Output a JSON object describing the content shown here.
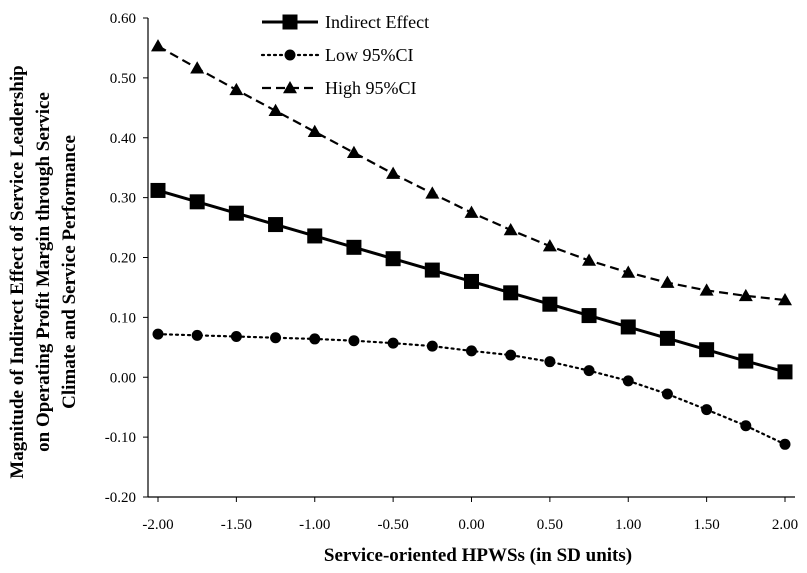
{
  "chart_data": {
    "type": "line",
    "xlabel": "Service-oriented HPWSs (in SD units)",
    "ylabel_lines": [
      "Magnitude of Indirect  Effect of Service Leadership",
      "on Operating  Profit Margin through Service",
      "Climate and Service Performance"
    ],
    "x": [
      -2.0,
      -1.75,
      -1.5,
      -1.25,
      -1.0,
      -0.75,
      -0.5,
      -0.25,
      0.0,
      0.25,
      0.5,
      0.75,
      1.0,
      1.25,
      1.5,
      1.75,
      2.0
    ],
    "xlim": [
      -2.0,
      2.0
    ],
    "ylim": [
      -0.2,
      0.6
    ],
    "x_tick_values": [
      -2.0,
      -1.5,
      -1.0,
      -0.5,
      0.0,
      0.5,
      1.0,
      1.5,
      2.0
    ],
    "x_tick_labels": [
      "-2.00",
      "-1.50",
      "-1.00",
      "-0.50",
      "0.00",
      "0.50",
      "1.00",
      "1.50",
      "2.00"
    ],
    "y_tick_values": [
      -0.2,
      -0.1,
      0.0,
      0.1,
      0.2,
      0.3,
      0.4,
      0.5,
      0.6
    ],
    "y_tick_labels": [
      "-0.20",
      "-0.10",
      "0.00",
      "0.10",
      "0.20",
      "0.30",
      "0.40",
      "0.50",
      "0.60"
    ],
    "grid": false,
    "legend_position": "top-center",
    "series": [
      {
        "name": "Indirect Effect",
        "style": "solid",
        "marker": "square",
        "color": "#000000",
        "values": [
          0.312,
          0.293,
          0.274,
          0.255,
          0.236,
          0.217,
          0.198,
          0.179,
          0.16,
          0.141,
          0.122,
          0.103,
          0.084,
          0.065,
          0.046,
          0.027,
          0.009
        ]
      },
      {
        "name": "Low 95%CI",
        "style": "dotted",
        "marker": "circle",
        "color": "#000000",
        "values": [
          0.072,
          0.07,
          0.068,
          0.066,
          0.064,
          0.061,
          0.057,
          0.052,
          0.044,
          0.037,
          0.026,
          0.011,
          -0.006,
          -0.028,
          -0.054,
          -0.081,
          -0.112
        ]
      },
      {
        "name": "High 95%CI",
        "style": "dashed",
        "marker": "triangle",
        "color": "#000000",
        "values": [
          0.553,
          0.516,
          0.48,
          0.445,
          0.41,
          0.375,
          0.34,
          0.307,
          0.275,
          0.246,
          0.219,
          0.195,
          0.175,
          0.158,
          0.145,
          0.136,
          0.129
        ]
      }
    ]
  }
}
